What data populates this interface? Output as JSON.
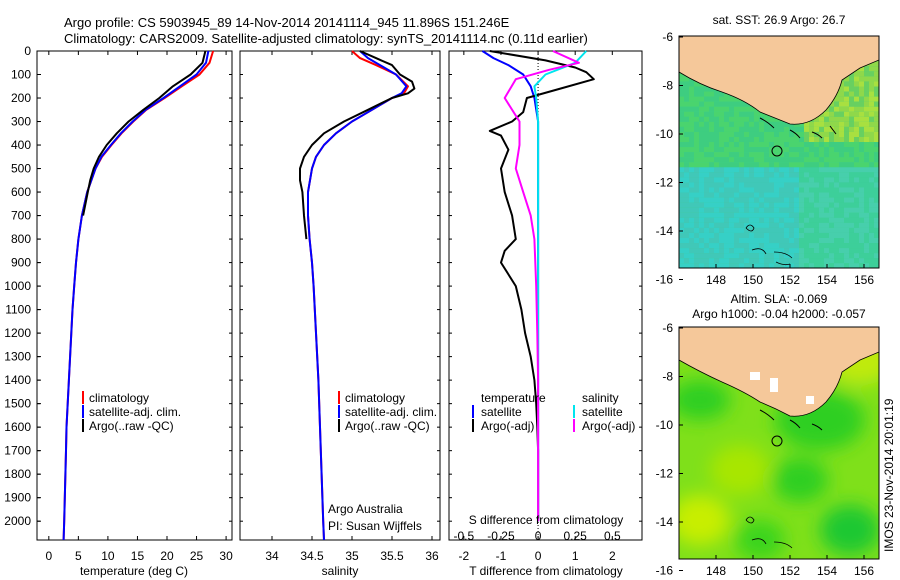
{
  "header": {
    "line1": "Argo profile: CS 5903945_89 14-Nov-2014 20141114_945 11.896S 151.246E",
    "line2": "Climatology: CARS2009. Satellite-adjusted climatology: synTS_20141114.nc (0.11d earlier)"
  },
  "colors": {
    "clim": "#ff0000",
    "sat": "#0000ff",
    "argo": "#000000",
    "sal_sat": "#00e5ee",
    "sal_argo": "#ff00ff"
  },
  "chart_data": [
    {
      "type": "line",
      "id": "temp",
      "xlabel": "temperature (deg C)",
      "xlim": [
        -2,
        31
      ],
      "ylim": [
        0,
        2080
      ],
      "xticks": [
        0,
        5,
        10,
        15,
        20,
        25,
        30
      ],
      "series": [
        {
          "name": "climatology",
          "color": "#ff0000",
          "depth": [
            0,
            50,
            100,
            150,
            200,
            250,
            300,
            350,
            400,
            450,
            500,
            600,
            700,
            800,
            900,
            1000,
            1100,
            1200,
            1300,
            1400,
            1500,
            1600,
            1700,
            1800,
            1900,
            2000,
            2080
          ],
          "values": [
            27.8,
            27.2,
            25.5,
            22.5,
            19.6,
            16.5,
            14.3,
            12.3,
            10.6,
            9.0,
            7.9,
            6.5,
            5.6,
            5.0,
            4.6,
            4.3,
            4.0,
            3.8,
            3.6,
            3.4,
            3.2,
            3.0,
            2.9,
            2.8,
            2.7,
            2.6,
            2.5
          ]
        },
        {
          "name": "satellite-adj. clim.",
          "color": "#0000ff",
          "depth": [
            0,
            50,
            100,
            150,
            200,
            250,
            300,
            350,
            400,
            450,
            500,
            600,
            700,
            800,
            900,
            1000,
            1100,
            1200,
            1300,
            1400,
            1500,
            1600,
            1700,
            1800,
            1900,
            2000,
            2080
          ],
          "values": [
            27.0,
            26.6,
            25.0,
            22.2,
            19.4,
            16.4,
            14.2,
            12.2,
            10.5,
            8.9,
            7.9,
            6.5,
            5.6,
            5.0,
            4.6,
            4.3,
            4.0,
            3.8,
            3.6,
            3.4,
            3.2,
            3.0,
            2.9,
            2.8,
            2.7,
            2.6,
            2.5
          ]
        },
        {
          "name": "Argo(..raw -QC)",
          "color": "#000000",
          "depth": [
            0,
            50,
            100,
            150,
            200,
            250,
            300,
            350,
            400,
            450,
            500,
            550,
            600,
            700
          ],
          "values": [
            26.5,
            26.0,
            24.0,
            21.0,
            18.7,
            16.0,
            13.5,
            11.5,
            9.8,
            8.5,
            7.6,
            7.0,
            6.6,
            5.8
          ]
        }
      ],
      "legend": [
        "climatology",
        "satellite-adj. clim.",
        "Argo(..raw -QC)"
      ]
    },
    {
      "type": "line",
      "id": "sal",
      "xlabel": "salinity",
      "xlim": [
        33.6,
        36.1
      ],
      "ylim": [
        0,
        2080
      ],
      "xticks": [
        34,
        34.5,
        35,
        35.5,
        36
      ],
      "series": [
        {
          "name": "climatology",
          "color": "#ff0000",
          "depth": [
            0,
            30,
            60,
            100,
            150,
            180,
            200,
            250,
            300,
            350,
            400,
            450,
            500,
            600,
            700,
            800,
            900,
            1000,
            1200,
            1400,
            1600,
            1800,
            2000,
            2080
          ],
          "values": [
            35.0,
            35.1,
            35.3,
            35.55,
            35.7,
            35.65,
            35.5,
            35.25,
            35.0,
            34.8,
            34.65,
            34.55,
            34.5,
            34.45,
            34.45,
            34.47,
            34.5,
            34.52,
            34.55,
            34.58,
            34.6,
            34.62,
            34.64,
            34.65
          ]
        },
        {
          "name": "satellite-adj. clim.",
          "color": "#0000ff",
          "depth": [
            0,
            30,
            60,
            100,
            150,
            180,
            200,
            250,
            300,
            350,
            400,
            450,
            500,
            600,
            700,
            800,
            900,
            1000,
            1200,
            1400,
            1600,
            1800,
            2000,
            2080
          ],
          "values": [
            35.1,
            35.2,
            35.35,
            35.55,
            35.68,
            35.62,
            35.5,
            35.25,
            35.0,
            34.8,
            34.65,
            34.55,
            34.5,
            34.45,
            34.45,
            34.47,
            34.5,
            34.52,
            34.55,
            34.58,
            34.6,
            34.62,
            34.64,
            34.65
          ]
        },
        {
          "name": "Argo(..raw -QC)",
          "color": "#000000",
          "depth": [
            0,
            30,
            60,
            100,
            130,
            160,
            180,
            200,
            250,
            300,
            350,
            400,
            450,
            500,
            550,
            600,
            700,
            800
          ],
          "values": [
            35.1,
            35.3,
            35.5,
            35.6,
            35.75,
            35.78,
            35.7,
            35.5,
            35.2,
            34.9,
            34.65,
            34.5,
            34.4,
            34.35,
            34.35,
            34.38,
            34.4,
            34.43
          ]
        }
      ],
      "legend": [
        "climatology",
        "satellite-adj. clim.",
        "Argo(..raw -QC)"
      ],
      "note1": "Argo Australia",
      "note2": "PI: Susan Wijffels"
    },
    {
      "type": "line",
      "id": "diff",
      "xlabel": "T difference from climatology",
      "xlabel_top": "S difference from climatology",
      "xlim": [
        -2.4,
        2.8
      ],
      "ylim": [
        0,
        2080
      ],
      "xticks": [
        -2,
        -1,
        0,
        1,
        2
      ],
      "xticks_top": [
        "-0.5",
        "-0.25",
        "0",
        "0.25",
        "0.5"
      ],
      "series": [
        {
          "name": "temperature satellite",
          "color": "#0000ff",
          "depth": [
            0,
            30,
            60,
            100,
            150,
            200,
            300,
            400,
            500,
            700,
            1000,
            1500,
            2000
          ],
          "values": [
            -1.5,
            -1.2,
            -0.8,
            -0.4,
            -0.2,
            -0.1,
            0,
            0,
            0,
            0,
            0,
            0,
            0
          ]
        },
        {
          "name": "temperature Argo(-adj)",
          "color": "#000000",
          "depth": [
            0,
            40,
            70,
            90,
            120,
            160,
            200,
            260,
            300,
            340,
            360,
            420,
            500,
            600,
            700,
            800,
            850,
            900,
            1000,
            1100,
            1200,
            1300,
            1400,
            1500,
            1600,
            1700,
            1800,
            1900,
            2000
          ],
          "values": [
            -1.3,
            0.2,
            1.0,
            1.3,
            1.5,
            0.6,
            -0.3,
            -0.4,
            -0.7,
            -1.3,
            -1.0,
            -0.8,
            -1.0,
            -0.9,
            -0.7,
            -0.6,
            -0.9,
            -1.0,
            -0.6,
            -0.45,
            -0.35,
            -0.2,
            -0.1,
            -0.05,
            -0.02,
            0,
            0,
            0,
            0
          ]
        },
        {
          "name": "salinity satellite",
          "color": "#00e5ee",
          "depth": [
            0,
            50,
            100,
            150,
            200,
            300,
            400,
            500,
            700,
            1000,
            1500,
            2000
          ],
          "values": [
            1.3,
            1.0,
            0.2,
            -0.1,
            -0.05,
            0,
            0,
            0,
            0,
            0,
            0,
            0
          ]
        },
        {
          "name": "salinity Argo(-adj)",
          "color": "#ff00ff",
          "depth": [
            0,
            50,
            80,
            120,
            200,
            300,
            400,
            500,
            600,
            700,
            800,
            1000,
            1200,
            1400,
            1600,
            1800,
            2000
          ],
          "values": [
            0.4,
            1.1,
            0.3,
            -0.6,
            -0.9,
            -0.5,
            -0.5,
            -0.6,
            -0.4,
            -0.2,
            -0.1,
            -0.05,
            -0.02,
            0,
            0,
            0,
            0
          ]
        }
      ],
      "legend_left_title": "temperature",
      "legend_left": [
        "satellite",
        "Argo(-adj)"
      ],
      "legend_right_title": "salinity",
      "legend_right": [
        "satellite",
        "Argo(-adj)"
      ]
    }
  ],
  "depth_axis": {
    "ticks": [
      0,
      100,
      200,
      300,
      400,
      500,
      600,
      700,
      800,
      900,
      1000,
      1100,
      1200,
      1300,
      1400,
      1500,
      1600,
      1700,
      1800,
      1900,
      2000
    ]
  },
  "maps": {
    "top": {
      "title": "sat. SST: 26.9 Argo: 26.7",
      "yticks": [
        "-6",
        "-8",
        "-10",
        "-12",
        "-14",
        "-16"
      ],
      "xticks": [
        "148",
        "150",
        "152",
        "154",
        "156"
      ]
    },
    "bottom": {
      "title1": "Altim. SLA: -0.069",
      "title2": "Argo h1000: -0.04 h2000: -0.057",
      "yticks": [
        "-6",
        "-8",
        "-10",
        "-12",
        "-14",
        "-16"
      ],
      "xticks": [
        "148",
        "150",
        "152",
        "154",
        "156"
      ]
    }
  },
  "side_stamp": "IMOS 23-Nov-2014 20:01:19"
}
